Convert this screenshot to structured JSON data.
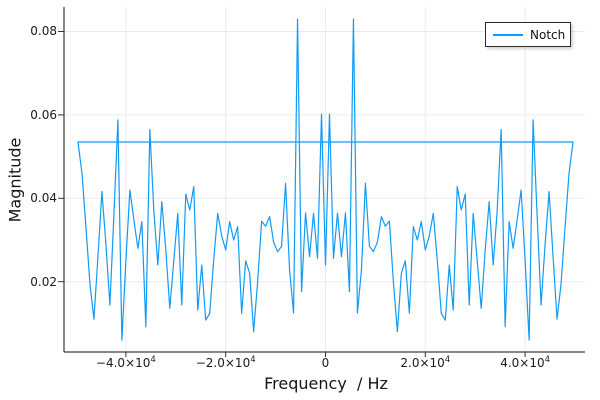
{
  "figure": {
    "background": "#FFFFFF",
    "plot_background": "#FFFFFF"
  },
  "colors": {
    "series": "#109BF5",
    "grid": "#EBEBEB",
    "spine": "#111111",
    "tick": "#333333",
    "text": "#151515"
  },
  "legend": {
    "label": "Notch"
  },
  "axes": {
    "xlabel": "Frequency  / Hz",
    "ylabel": "Magnitude"
  },
  "chart_data": {
    "type": "line",
    "title": "",
    "xlabel": "Frequency  / Hz",
    "ylabel": "Magnitude",
    "grid": true,
    "legend_position": "topright",
    "xlim": [
      -52400,
      52000
    ],
    "ylim": [
      0.00314,
      0.08587
    ],
    "xticks": {
      "values": [
        -40000,
        -20000,
        0,
        20000,
        40000
      ],
      "labels": [
        {
          "base": "−4.0×10",
          "exp": "4"
        },
        {
          "base": "−2.0×10",
          "exp": "4"
        },
        {
          "base": "0",
          "exp": ""
        },
        {
          "base": "2.0×10",
          "exp": "4"
        },
        {
          "base": "4.0×10",
          "exp": "4"
        }
      ]
    },
    "yticks": {
      "values": [
        0.02,
        0.04,
        0.06,
        0.08
      ],
      "labels": [
        "0.02",
        "0.04",
        "0.06",
        "0.08"
      ]
    },
    "series": [
      {
        "name": "Notch",
        "color": "#109BF5",
        "x": {
          "start_hz": -49600,
          "step_hz": 800,
          "count": 125
        },
        "y": [
          0.0535,
          0.046,
          0.033,
          0.0195,
          0.011,
          0.026,
          0.0416,
          0.029,
          0.0144,
          0.036,
          0.0588,
          0.006,
          0.025,
          0.042,
          0.0348,
          0.028,
          0.0344,
          0.0092,
          0.0565,
          0.037,
          0.024,
          0.0392,
          0.0276,
          0.0136,
          0.025,
          0.0364,
          0.0144,
          0.041,
          0.0372,
          0.0428,
          0.0132,
          0.024,
          0.0108,
          0.0124,
          0.0252,
          0.0364,
          0.031,
          0.0276,
          0.0344,
          0.03,
          0.0332,
          0.0124,
          0.025,
          0.022,
          0.008,
          0.02,
          0.0345,
          0.0333,
          0.0356,
          0.0295,
          0.0272,
          0.0285,
          0.0436,
          0.0228,
          0.0125,
          0.083,
          0.0176,
          0.0365,
          0.026,
          0.0364,
          0.0256,
          0.0602,
          0.024,
          0.0602,
          0.0256,
          0.0364,
          0.026,
          0.0365,
          0.0176,
          0.083,
          0.0125,
          0.0228,
          0.0436,
          0.0285,
          0.0272,
          0.0295,
          0.0356,
          0.0333,
          0.0345,
          0.02,
          0.008,
          0.022,
          0.025,
          0.0124,
          0.0332,
          0.03,
          0.0344,
          0.0276,
          0.031,
          0.0364,
          0.0252,
          0.0124,
          0.0108,
          0.024,
          0.0132,
          0.0428,
          0.0372,
          0.041,
          0.0144,
          0.0364,
          0.025,
          0.0136,
          0.0276,
          0.0392,
          0.024,
          0.037,
          0.0565,
          0.0092,
          0.0344,
          0.028,
          0.0348,
          0.042,
          0.025,
          0.006,
          0.0588,
          0.036,
          0.0144,
          0.029,
          0.0416,
          0.026,
          0.011,
          0.0195,
          0.033,
          0.046,
          0.0535
        ],
        "connector": {
          "x1_hz": 49600,
          "x2_hz": -49600,
          "y": 0.0535
        }
      }
    ]
  }
}
